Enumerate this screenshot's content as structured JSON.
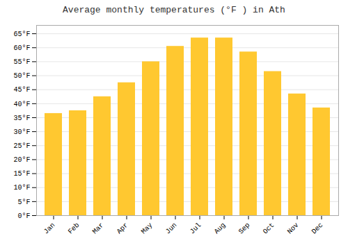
{
  "chart_data": {
    "type": "bar",
    "title": "Average monthly temperatures (°F ) in Ath",
    "categories": [
      "Jan",
      "Feb",
      "Mar",
      "Apr",
      "May",
      "Jun",
      "Jul",
      "Aug",
      "Sep",
      "Oct",
      "Nov",
      "Dec"
    ],
    "values": [
      36.5,
      37.5,
      42.5,
      47.5,
      55.0,
      60.5,
      63.5,
      63.5,
      58.5,
      51.5,
      43.5,
      38.5
    ],
    "color": "#FFC830",
    "ylim": [
      0,
      68
    ],
    "yticks": [
      {
        "value": 0,
        "label": "0°F"
      },
      {
        "value": 5,
        "label": "5°F"
      },
      {
        "value": 10,
        "label": "10°F"
      },
      {
        "value": 15,
        "label": "15°F"
      },
      {
        "value": 20,
        "label": "20°F"
      },
      {
        "value": 25,
        "label": "25°F"
      },
      {
        "value": 30,
        "label": "30°F"
      },
      {
        "value": 35,
        "label": "35°F"
      },
      {
        "value": 40,
        "label": "40°F"
      },
      {
        "value": 45,
        "label": "45°F"
      },
      {
        "value": 50,
        "label": "50°F"
      },
      {
        "value": 55,
        "label": "55°F"
      },
      {
        "value": 60,
        "label": "60°F"
      },
      {
        "value": 65,
        "label": "65°F"
      }
    ],
    "grid": true
  }
}
